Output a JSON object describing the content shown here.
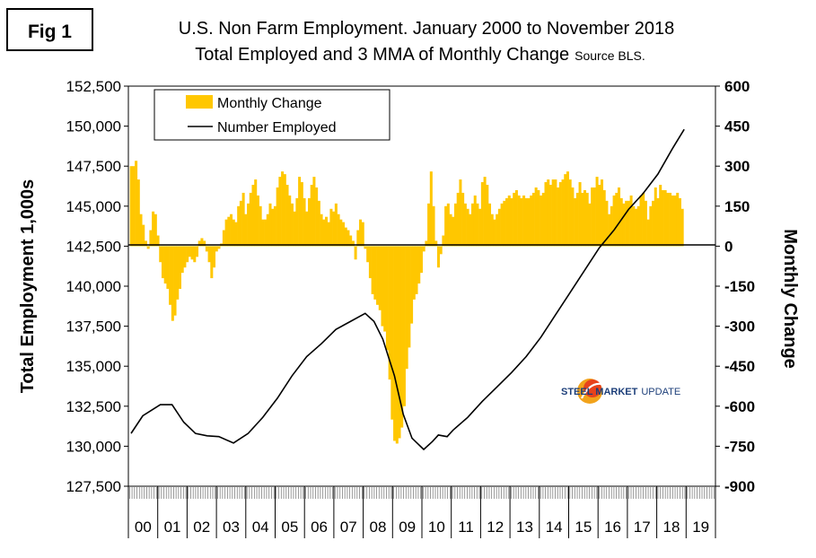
{
  "fig_label": "Fig 1",
  "chart_data": {
    "type": "bar+line",
    "title": "U.S. Non Farm Employment. January 2000 to November 2018",
    "subtitle": "Total Employed and 3 MMA of Monthly Change",
    "source": "Source BLS.",
    "ylabel_left": "Total Employment 1,000s",
    "ylabel_right": "Monthly Change",
    "ylim_left": [
      127500,
      152500
    ],
    "ylim_right": [
      -900,
      600
    ],
    "yticks_left": [
      "127,500",
      "130,000",
      "132,500",
      "135,000",
      "137,500",
      "140,000",
      "142,500",
      "145,000",
      "147,500",
      "150,000",
      "152,500"
    ],
    "yticks_right": [
      "-900",
      "-750",
      "-600",
      "-450",
      "-300",
      "-150",
      "0",
      "150",
      "300",
      "450",
      "600"
    ],
    "x_categories": [
      "00",
      "01",
      "02",
      "03",
      "04",
      "05",
      "06",
      "07",
      "08",
      "09",
      "10",
      "11",
      "12",
      "13",
      "14",
      "15",
      "16",
      "17",
      "18",
      "19"
    ],
    "legend": [
      "Monthly Change",
      "Number Employed"
    ],
    "series": [
      {
        "name": "Monthly Change",
        "type": "bar",
        "unit": "thousands, 3 MMA",
        "annual_knots": [
          {
            "year": 2000,
            "values": [
              300,
              300,
              320,
              250,
              120,
              80,
              20,
              -10,
              60,
              130,
              120,
              40
            ]
          },
          {
            "year": 2001,
            "values": [
              -60,
              -120,
              -140,
              -160,
              -220,
              -280,
              -260,
              -200,
              -160,
              -100,
              -80,
              -60
            ]
          },
          {
            "year": 2002,
            "values": [
              -40,
              -50,
              -60,
              -40,
              20,
              30,
              20,
              -20,
              -60,
              -120,
              -80,
              -20
            ]
          },
          {
            "year": 2003,
            "values": [
              -10,
              10,
              60,
              100,
              110,
              120,
              100,
              90,
              150,
              170,
              200,
              120
            ]
          },
          {
            "year": 2004,
            "values": [
              160,
              200,
              230,
              250,
              190,
              150,
              100,
              100,
              120,
              160,
              140,
              150
            ]
          },
          {
            "year": 2005,
            "values": [
              220,
              260,
              280,
              270,
              230,
              190,
              160,
              130,
              180,
              260,
              240,
              180
            ]
          },
          {
            "year": 2006,
            "values": [
              130,
              180,
              230,
              260,
              220,
              170,
              120,
              100,
              110,
              90,
              140,
              130
            ]
          },
          {
            "year": 2007,
            "values": [
              160,
              120,
              100,
              90,
              70,
              60,
              40,
              20,
              -50,
              60,
              100,
              90
            ]
          },
          {
            "year": 2008,
            "values": [
              -10,
              -60,
              -120,
              -180,
              -200,
              -220,
              -240,
              -300,
              -320,
              -390,
              -500,
              -650
            ]
          },
          {
            "year": 2009,
            "values": [
              -730,
              -740,
              -720,
              -680,
              -600,
              -460,
              -380,
              -290,
              -200,
              -180,
              -140,
              -100
            ]
          },
          {
            "year": 2010,
            "values": [
              -20,
              20,
              160,
              280,
              150,
              20,
              -80,
              -30,
              40,
              150,
              160,
              120
            ]
          },
          {
            "year": 2011,
            "values": [
              110,
              160,
              200,
              250,
              200,
              160,
              140,
              120,
              160,
              190,
              160,
              140
            ]
          },
          {
            "year": 2012,
            "values": [
              240,
              260,
              230,
              160,
              120,
              100,
              120,
              140,
              160,
              170,
              180,
              190
            ]
          },
          {
            "year": 2013,
            "values": [
              180,
              200,
              210,
              190,
              180,
              190,
              180,
              180,
              190,
              200,
              220,
              210
            ]
          },
          {
            "year": 2014,
            "values": [
              190,
              200,
              240,
              250,
              230,
              250,
              250,
              220,
              240,
              250,
              270,
              280
            ]
          },
          {
            "year": 2015,
            "values": [
              250,
              220,
              180,
              200,
              240,
              200,
              210,
              200,
              160,
              220,
              220,
              260
            ]
          },
          {
            "year": 2016,
            "values": [
              230,
              250,
              210,
              170,
              120,
              150,
              190,
              200,
              220,
              180,
              160,
              170
            ]
          },
          {
            "year": 2017,
            "values": [
              170,
              190,
              150,
              140,
              150,
              190,
              200,
              170,
              100,
              150,
              170,
              220
            ]
          },
          {
            "year": 2018,
            "values": [
              180,
              230,
              210,
              210,
              200,
              200,
              190,
              190,
              200,
              180,
              140
            ]
          }
        ]
      },
      {
        "name": "Number Employed",
        "type": "line",
        "unit": "thousands",
        "knots": [
          {
            "date": 2000.0,
            "value": 130800
          },
          {
            "date": 2000.4,
            "value": 131900
          },
          {
            "date": 2001.0,
            "value": 132600
          },
          {
            "date": 2001.4,
            "value": 132600
          },
          {
            "date": 2001.8,
            "value": 131500
          },
          {
            "date": 2002.2,
            "value": 130800
          },
          {
            "date": 2002.6,
            "value": 130650
          },
          {
            "date": 2003.0,
            "value": 130600
          },
          {
            "date": 2003.5,
            "value": 130200
          },
          {
            "date": 2004.0,
            "value": 130800
          },
          {
            "date": 2004.5,
            "value": 131800
          },
          {
            "date": 2005.0,
            "value": 133000
          },
          {
            "date": 2005.5,
            "value": 134400
          },
          {
            "date": 2006.0,
            "value": 135600
          },
          {
            "date": 2006.5,
            "value": 136400
          },
          {
            "date": 2007.0,
            "value": 137300
          },
          {
            "date": 2007.5,
            "value": 137800
          },
          {
            "date": 2008.0,
            "value": 138300
          },
          {
            "date": 2008.3,
            "value": 137800
          },
          {
            "date": 2008.6,
            "value": 136700
          },
          {
            "date": 2009.0,
            "value": 134400
          },
          {
            "date": 2009.3,
            "value": 132000
          },
          {
            "date": 2009.6,
            "value": 130500
          },
          {
            "date": 2010.0,
            "value": 129800
          },
          {
            "date": 2010.3,
            "value": 130300
          },
          {
            "date": 2010.5,
            "value": 130700
          },
          {
            "date": 2010.8,
            "value": 130600
          },
          {
            "date": 2011.0,
            "value": 131000
          },
          {
            "date": 2011.5,
            "value": 131800
          },
          {
            "date": 2012.0,
            "value": 132800
          },
          {
            "date": 2012.5,
            "value": 133700
          },
          {
            "date": 2013.0,
            "value": 134600
          },
          {
            "date": 2013.5,
            "value": 135600
          },
          {
            "date": 2014.0,
            "value": 136800
          },
          {
            "date": 2014.5,
            "value": 138200
          },
          {
            "date": 2015.0,
            "value": 139600
          },
          {
            "date": 2015.5,
            "value": 141000
          },
          {
            "date": 2016.0,
            "value": 142400
          },
          {
            "date": 2016.5,
            "value": 143500
          },
          {
            "date": 2017.0,
            "value": 144800
          },
          {
            "date": 2017.5,
            "value": 145800
          },
          {
            "date": 2018.0,
            "value": 147000
          },
          {
            "date": 2018.5,
            "value": 148600
          },
          {
            "date": 2018.9,
            "value": 149800
          }
        ]
      }
    ]
  },
  "watermark": {
    "word1": "STEEL MARKET",
    "word2": "UPDATE"
  }
}
